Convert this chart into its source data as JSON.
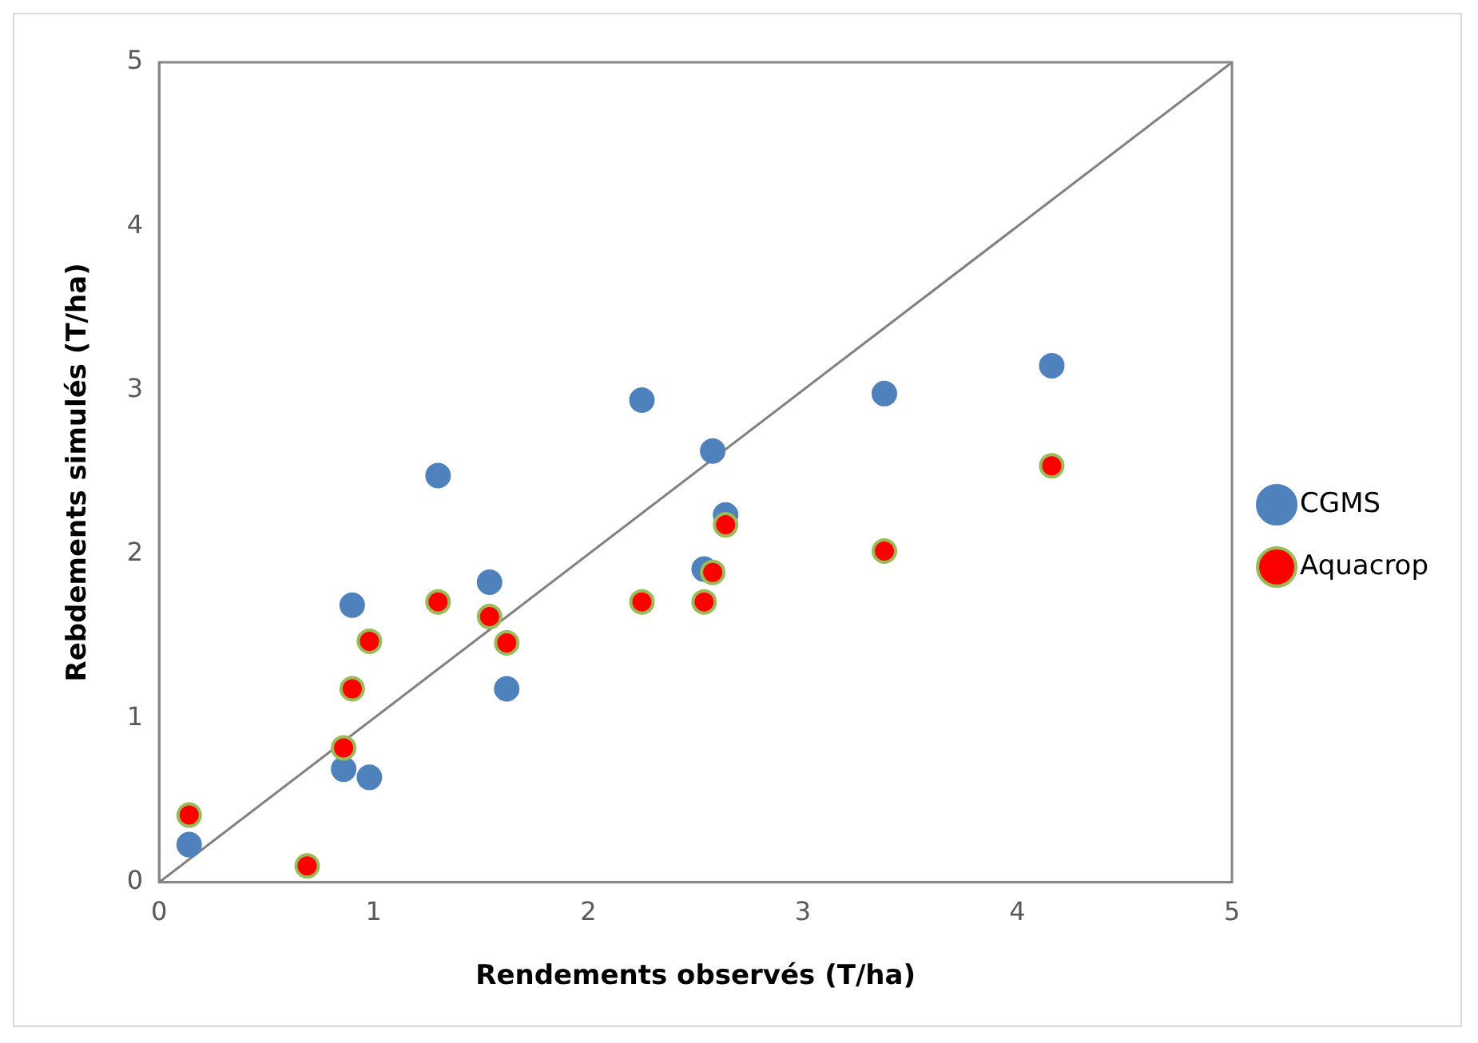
{
  "chart_data": {
    "type": "scatter",
    "xlabel": "Rendements observés (T/ha)",
    "ylabel": "Rebdements simulés (T/ha)",
    "xlim": [
      0,
      5
    ],
    "ylim": [
      0,
      5
    ],
    "xticks": [
      0,
      1,
      2,
      3,
      4,
      5
    ],
    "yticks": [
      0,
      1,
      2,
      3,
      4,
      5
    ],
    "grid": false,
    "legend": "right",
    "marker": "circle",
    "series": [
      {
        "name": "CGMS",
        "color": "#4f81bd",
        "x": [
          0.14,
          0.86,
          0.98,
          0.9,
          1.3,
          1.54,
          1.62,
          2.25,
          2.58,
          2.64,
          2.54,
          3.38,
          4.16
        ],
        "values": [
          0.23,
          0.69,
          0.64,
          1.69,
          2.48,
          1.83,
          1.18,
          2.94,
          2.63,
          2.24,
          1.91,
          2.98,
          3.15
        ]
      },
      {
        "name": "Aquacrop",
        "color": "#ff0000",
        "x": [
          0.14,
          0.69,
          0.86,
          0.9,
          0.98,
          1.3,
          1.54,
          1.62,
          2.25,
          2.54,
          2.58,
          2.64,
          3.38,
          4.16
        ],
        "values": [
          0.41,
          0.1,
          0.82,
          1.18,
          1.47,
          1.71,
          1.62,
          1.46,
          1.71,
          1.71,
          1.89,
          2.18,
          2.02,
          2.54
        ]
      },
      {
        "type": "line",
        "color": "#808080",
        "x": [
          0,
          5
        ],
        "values": [
          0,
          5
        ],
        "marker": "none",
        "line_style": "solid"
      }
    ]
  }
}
